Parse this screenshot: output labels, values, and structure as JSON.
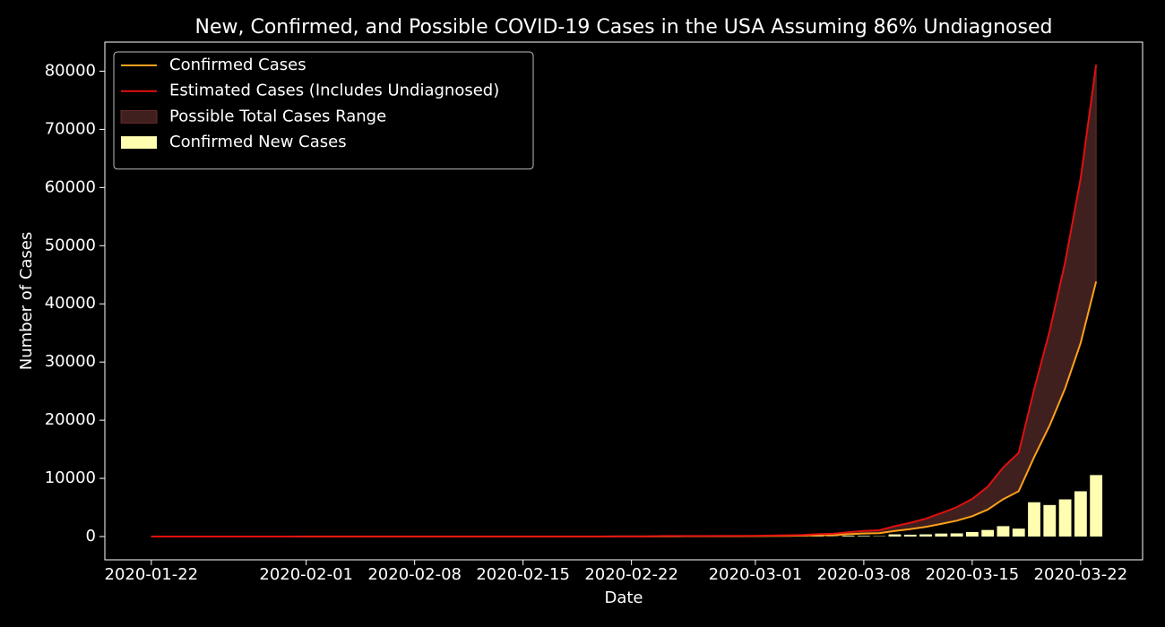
{
  "chart_data": {
    "type": "line",
    "title": "New, Confirmed, and Possible COVID-19 Cases in the USA Assuming 86% Undiagnosed",
    "xlabel": "Date",
    "ylabel": "Number of Cases",
    "x": [
      "2020-01-22",
      "2020-01-23",
      "2020-01-24",
      "2020-01-25",
      "2020-01-26",
      "2020-01-27",
      "2020-01-28",
      "2020-01-29",
      "2020-01-30",
      "2020-01-31",
      "2020-02-01",
      "2020-02-02",
      "2020-02-03",
      "2020-02-04",
      "2020-02-05",
      "2020-02-06",
      "2020-02-07",
      "2020-02-08",
      "2020-02-09",
      "2020-02-10",
      "2020-02-11",
      "2020-02-12",
      "2020-02-13",
      "2020-02-14",
      "2020-02-15",
      "2020-02-16",
      "2020-02-17",
      "2020-02-18",
      "2020-02-19",
      "2020-02-20",
      "2020-02-21",
      "2020-02-22",
      "2020-02-23",
      "2020-02-24",
      "2020-02-25",
      "2020-02-26",
      "2020-02-27",
      "2020-02-28",
      "2020-02-29",
      "2020-03-01",
      "2020-03-02",
      "2020-03-03",
      "2020-03-04",
      "2020-03-05",
      "2020-03-06",
      "2020-03-07",
      "2020-03-08",
      "2020-03-09",
      "2020-03-10",
      "2020-03-11",
      "2020-03-12",
      "2020-03-13",
      "2020-03-14",
      "2020-03-15",
      "2020-03-16",
      "2020-03-17",
      "2020-03-18",
      "2020-03-19",
      "2020-03-20",
      "2020-03-21",
      "2020-03-22",
      "2020-03-23"
    ],
    "series": [
      {
        "name": "Confirmed Cases",
        "type": "line",
        "color": "#ffa01c",
        "values": [
          1,
          1,
          2,
          2,
          5,
          5,
          5,
          5,
          5,
          7,
          8,
          8,
          11,
          11,
          11,
          11,
          11,
          11,
          11,
          11,
          12,
          12,
          13,
          13,
          13,
          13,
          13,
          13,
          13,
          13,
          15,
          15,
          15,
          51,
          51,
          57,
          58,
          60,
          68,
          74,
          98,
          118,
          149,
          217,
          262,
          402,
          518,
          583,
          959,
          1281,
          1663,
          2179,
          2727,
          3499,
          4632,
          6421,
          7786,
          13680,
          19101,
          25493,
          33276,
          43847
        ]
      },
      {
        "name": "Estimated Cases (Includes Undiagnosed)",
        "type": "line",
        "color": "#e0100f",
        "values": [
          2,
          2,
          4,
          4,
          9,
          9,
          9,
          9,
          9,
          13,
          15,
          15,
          20,
          20,
          20,
          20,
          20,
          20,
          20,
          20,
          22,
          22,
          24,
          24,
          24,
          24,
          24,
          24,
          24,
          24,
          28,
          28,
          28,
          94,
          94,
          105,
          107,
          111,
          126,
          137,
          181,
          218,
          276,
          401,
          485,
          744,
          958,
          1079,
          1774,
          2370,
          3077,
          4031,
          5045,
          6473,
          8569,
          11879,
          14404,
          25308,
          35337,
          47162,
          61561,
          81117
        ]
      },
      {
        "name": "Confirmed New Cases",
        "type": "bar",
        "color": "#fffdb0",
        "values": [
          null,
          0,
          1,
          0,
          3,
          0,
          0,
          0,
          0,
          2,
          1,
          0,
          3,
          0,
          0,
          0,
          0,
          0,
          0,
          0,
          1,
          0,
          1,
          0,
          0,
          0,
          0,
          0,
          0,
          0,
          2,
          0,
          0,
          36,
          0,
          6,
          1,
          2,
          8,
          6,
          24,
          20,
          31,
          68,
          45,
          140,
          116,
          65,
          376,
          322,
          382,
          516,
          548,
          772,
          1133,
          1789,
          1365,
          5894,
          5421,
          6392,
          7783,
          10571
        ]
      }
    ],
    "range": {
      "name": "Possible Total Cases Range",
      "color": "#3f201f",
      "edge": "#6a2b28"
    },
    "xlim": [
      "2020-01-19",
      "2020-03-26"
    ],
    "xticks": [
      "2020-01-22",
      "2020-02-01",
      "2020-02-08",
      "2020-02-15",
      "2020-02-22",
      "2020-03-01",
      "2020-03-08",
      "2020-03-15",
      "2020-03-22"
    ],
    "ylim": [
      -4000,
      85000
    ],
    "yticks": [
      0,
      10000,
      20000,
      30000,
      40000,
      50000,
      60000,
      70000,
      80000
    ],
    "legend": "upper left"
  }
}
